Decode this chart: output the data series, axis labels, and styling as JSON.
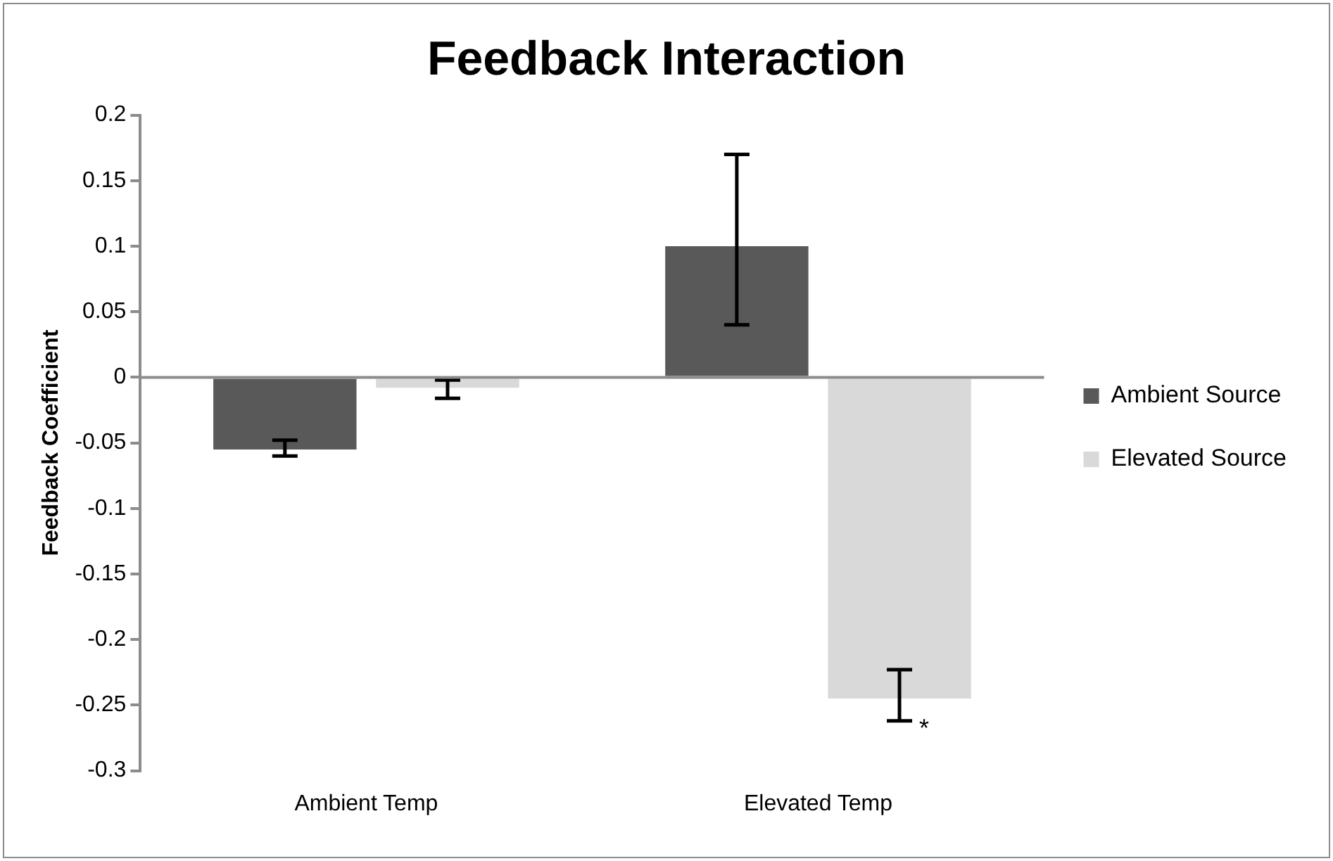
{
  "chart_data": {
    "type": "bar",
    "title": "Feedback Interaction",
    "ylabel": "Feedback Coefficient",
    "categories": [
      "Ambient Temp",
      "Elevated Temp"
    ],
    "series": [
      {
        "name": "Ambient Source",
        "color": "#595959",
        "values": [
          -0.055,
          0.1
        ],
        "errors": [
          [
            -0.06,
            -0.048
          ],
          [
            0.04,
            0.17
          ]
        ]
      },
      {
        "name": "Elevated Source",
        "color": "#d9d9d9",
        "values": [
          -0.008,
          -0.245
        ],
        "errors": [
          [
            -0.016,
            -0.002
          ],
          [
            -0.262,
            -0.223
          ]
        ]
      }
    ],
    "ylim": [
      -0.3,
      0.2
    ],
    "yticks": [
      -0.3,
      -0.25,
      -0.2,
      -0.15,
      -0.1,
      -0.05,
      0,
      0.05,
      0.1,
      0.15,
      0.2
    ],
    "annotations": [
      "*"
    ],
    "ref_lines": [
      {
        "axis": "y",
        "value": 0,
        "color": "#8c8c8c"
      }
    ],
    "grid": false,
    "legend": "right"
  }
}
